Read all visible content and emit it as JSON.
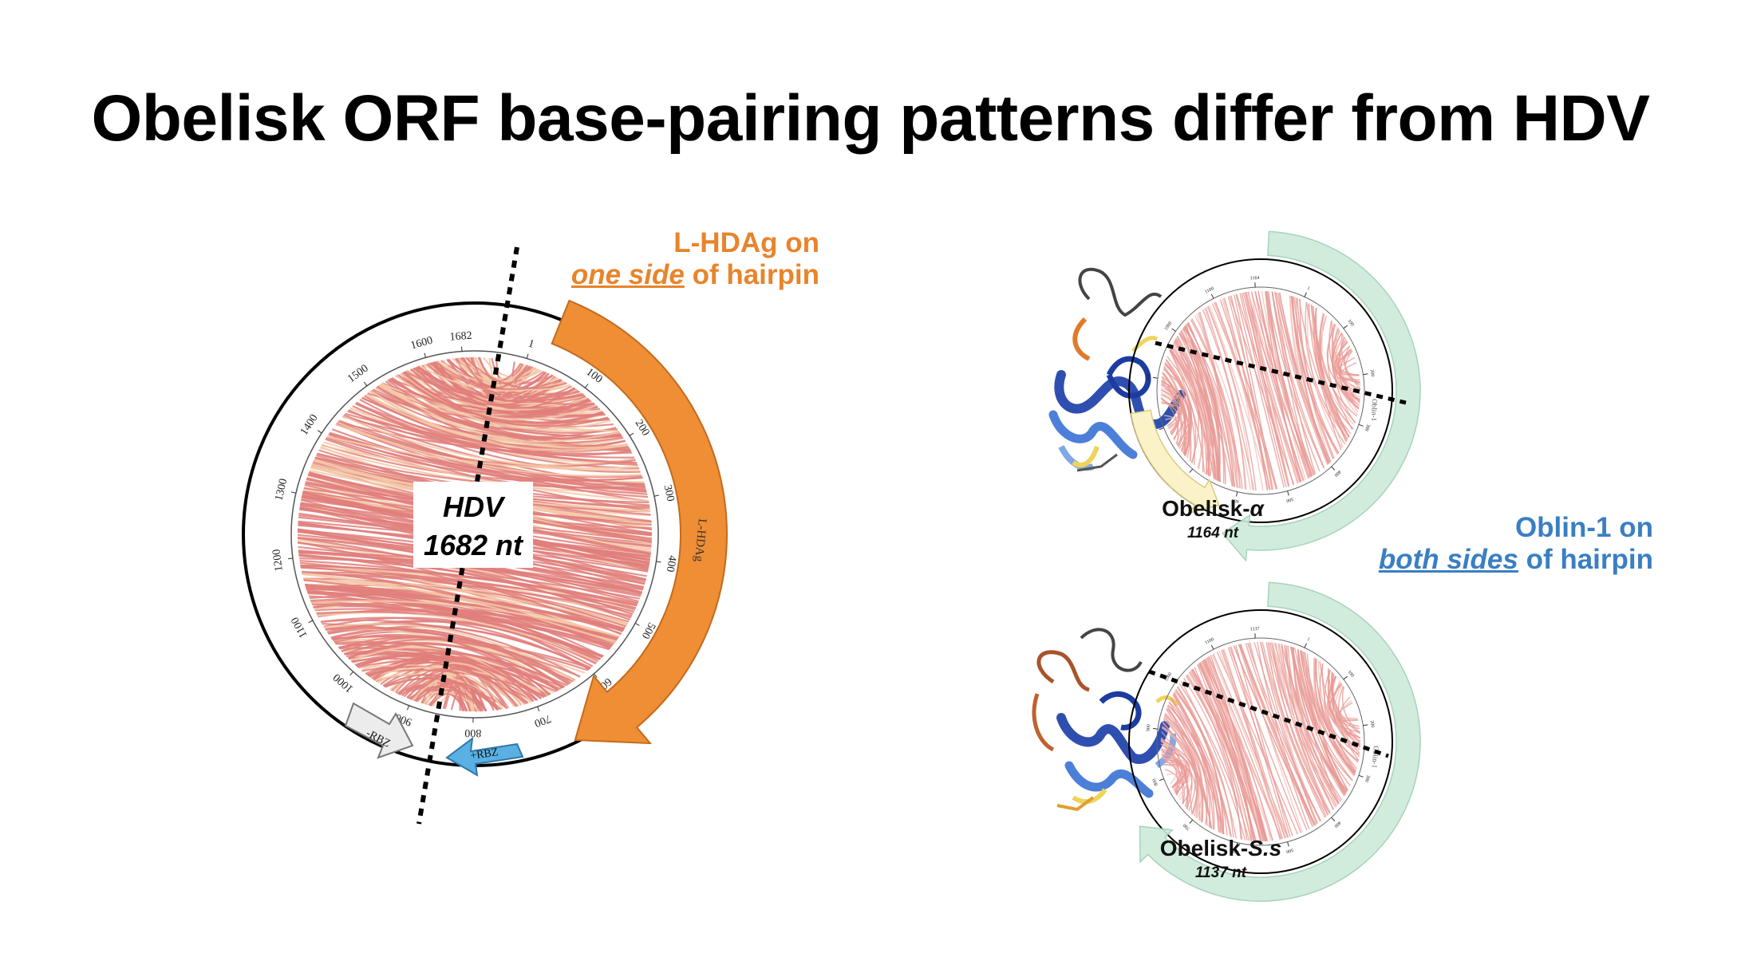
{
  "slide_title": "Obelisk ORF base-pairing patterns differ from HDV",
  "hdv": {
    "name": "HDV",
    "length": "1682 nt",
    "ticks": [
      "1682",
      "1",
      "100",
      "200",
      "300",
      "400",
      "500",
      "600",
      "700",
      "800",
      "900",
      "1000",
      "1100",
      "1200",
      "1300",
      "1400",
      "1500",
      "1600"
    ],
    "arrows": {
      "lhdag": "L-HDAg",
      "plus_rbz": "+RBZ",
      "minus_rbz": "-RBZ"
    },
    "colors": {
      "lhdag": "#EF8E34",
      "plus_rbz": "#5AB0E2",
      "minus_rbz": "#ECECEC",
      "arc": "#E07F7B",
      "arc_light": "#F4C9A8"
    }
  },
  "lhdag_callout": {
    "line1": "L-HDAg on",
    "emph": "one side",
    "rest": " of hairpin"
  },
  "oblin_callout": {
    "line1": "Oblin-1 on",
    "emph": "both sides",
    "rest": " of hairpin"
  },
  "obelisk_alpha": {
    "name_prefix": "Obelisk-",
    "name_italic": "α",
    "length": "1164 nt",
    "ticks": [
      "1164",
      "1",
      "100",
      "200",
      "300",
      "400",
      "500",
      "600",
      "700",
      "800",
      "900",
      "1000",
      "1100"
    ],
    "arrows": {
      "oblin1": "Oblin-1",
      "oblin2": "Oblin-2"
    }
  },
  "obelisk_ss": {
    "name_prefix": "Obelisk-",
    "name_italic": "S.s",
    "length": "1137 nt",
    "ticks": [
      "1137",
      "1",
      "100",
      "200",
      "300",
      "400",
      "500",
      "600",
      "700",
      "800",
      "900",
      "1000",
      "1100"
    ],
    "arrows": {
      "oblin1": "Oblin-1"
    }
  }
}
